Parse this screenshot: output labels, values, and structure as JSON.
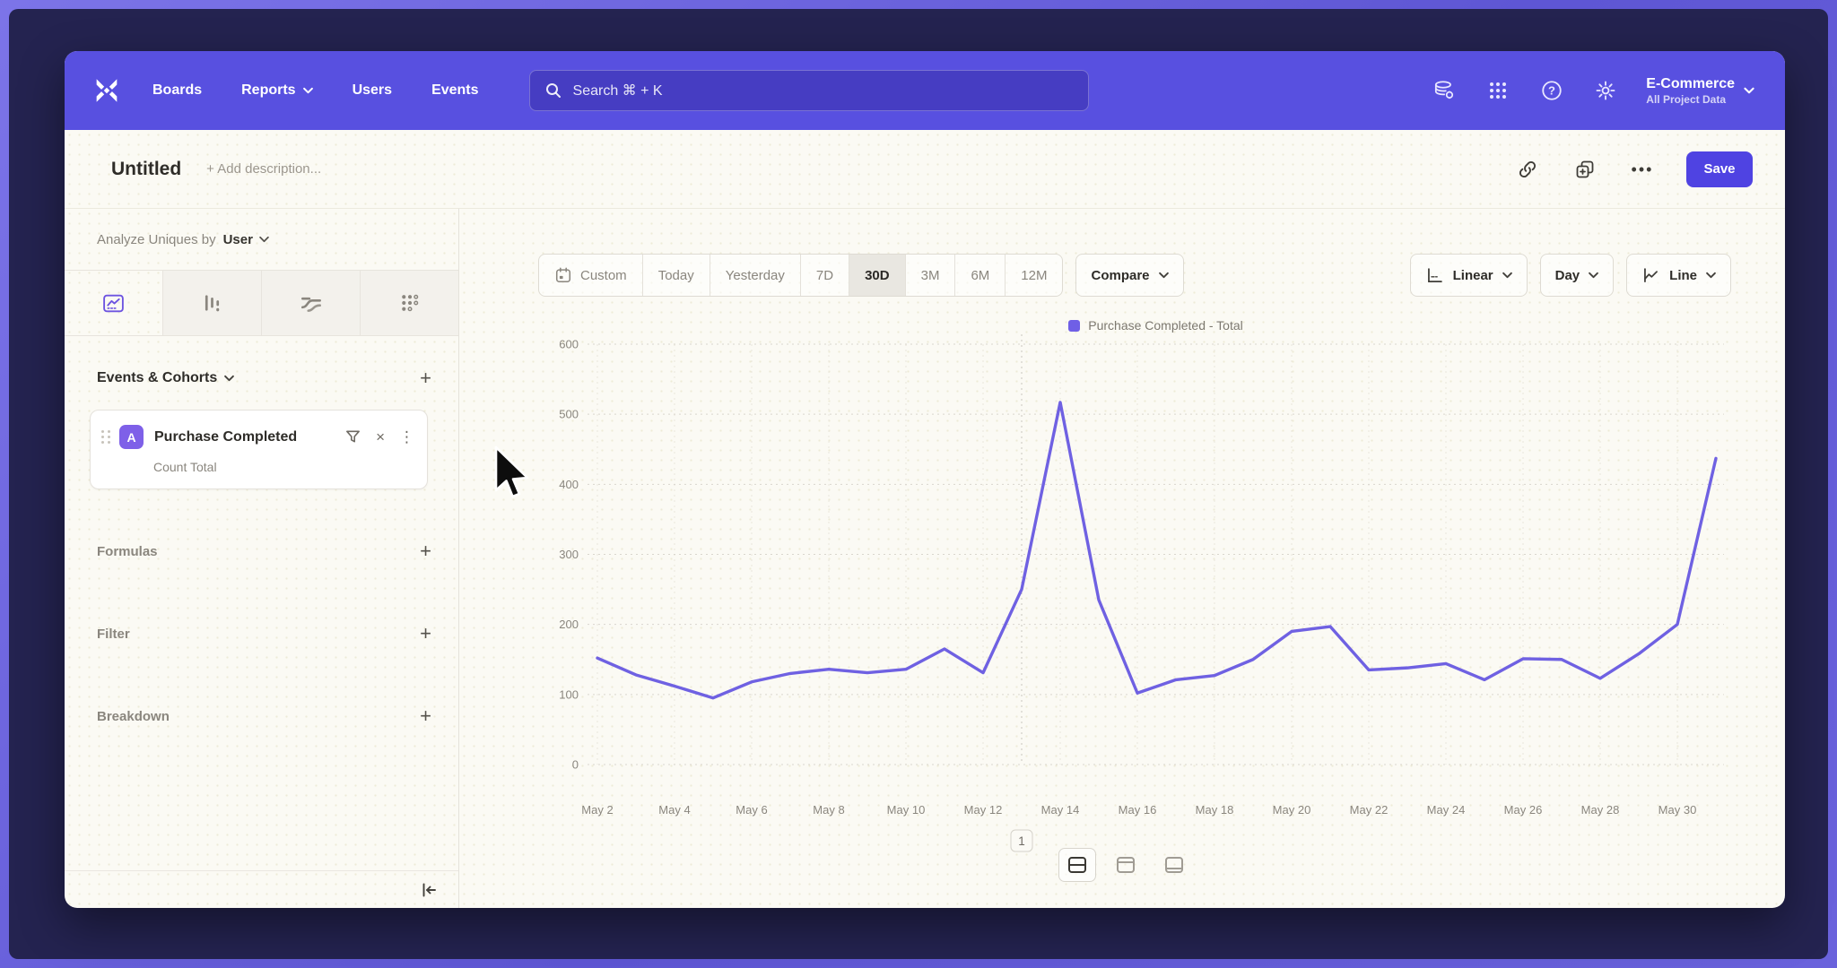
{
  "nav": {
    "items": [
      {
        "label": "Boards"
      },
      {
        "label": "Reports",
        "has_dropdown": true
      },
      {
        "label": "Users"
      },
      {
        "label": "Events"
      }
    ],
    "search_placeholder": "Search  ⌘ + K",
    "project": {
      "name": "E-Commerce",
      "subtitle": "All Project Data"
    }
  },
  "title_bar": {
    "title": "Untitled",
    "description_placeholder": "+ Add description...",
    "save_label": "Save"
  },
  "sidebar": {
    "analyze_label": "Analyze Uniques by",
    "analyze_value": "User",
    "tabs": [
      {
        "name": "insights",
        "selected": true
      },
      {
        "name": "funnels",
        "selected": false
      },
      {
        "name": "flows",
        "selected": false
      },
      {
        "name": "retention",
        "selected": false
      }
    ],
    "events_header": "Events & Cohorts",
    "event": {
      "letter": "A",
      "name": "Purchase Completed",
      "metric": "Count Total"
    },
    "sections": [
      "Formulas",
      "Filter",
      "Breakdown"
    ]
  },
  "toolbar": {
    "date_ranges": [
      "Custom",
      "Today",
      "Yesterday",
      "7D",
      "30D",
      "3M",
      "6M",
      "12M"
    ],
    "selected_range": "30D",
    "compare_label": "Compare",
    "view_controls": [
      {
        "label": "Linear",
        "icon": "axis-icon"
      },
      {
        "label": "Day",
        "icon": ""
      },
      {
        "label": "Line",
        "icon": "line-chart-icon"
      }
    ]
  },
  "icons": {
    "plus": "+",
    "close": "×",
    "kebab": "⋮",
    "more": "•••"
  },
  "colors": {
    "header_purple": "#5850e0",
    "accent_purple": "#6f61e2",
    "save_button": "#4f43e2",
    "event_badge": "#7e60e8"
  },
  "chart_data": {
    "type": "line",
    "title": "",
    "xlabel": "",
    "ylabel": "",
    "ylim": [
      0,
      600
    ],
    "y_ticks": [
      0,
      100,
      200,
      300,
      400,
      500,
      600
    ],
    "grid": "dotted",
    "legend_position": "top-center",
    "x_tick_labels": [
      "May 2",
      "May 4",
      "May 6",
      "May 8",
      "May 10",
      "May 12",
      "May 14",
      "May 16",
      "May 18",
      "May 20",
      "May 22",
      "May 24",
      "May 26",
      "May 28",
      "May 30"
    ],
    "series": [
      {
        "name": "Purchase Completed - Total",
        "color": "#6f61e2",
        "x": [
          "May 2",
          "May 3",
          "May 4",
          "May 5",
          "May 6",
          "May 7",
          "May 8",
          "May 9",
          "May 10",
          "May 11",
          "May 12",
          "May 13",
          "May 14",
          "May 15",
          "May 16",
          "May 17",
          "May 18",
          "May 19",
          "May 20",
          "May 21",
          "May 22",
          "May 23",
          "May 24",
          "May 25",
          "May 26",
          "May 27",
          "May 28",
          "May 29",
          "May 30",
          "May 31"
        ],
        "values": [
          152,
          128,
          112,
          95,
          118,
          130,
          136,
          131,
          136,
          165,
          131,
          250,
          517,
          235,
          102,
          121,
          127,
          150,
          190,
          197,
          135,
          138,
          144,
          121,
          151,
          150,
          123,
          158,
          200,
          437
        ]
      }
    ],
    "annotation": {
      "label": "1",
      "x": "May 13",
      "x_index": 11
    }
  }
}
